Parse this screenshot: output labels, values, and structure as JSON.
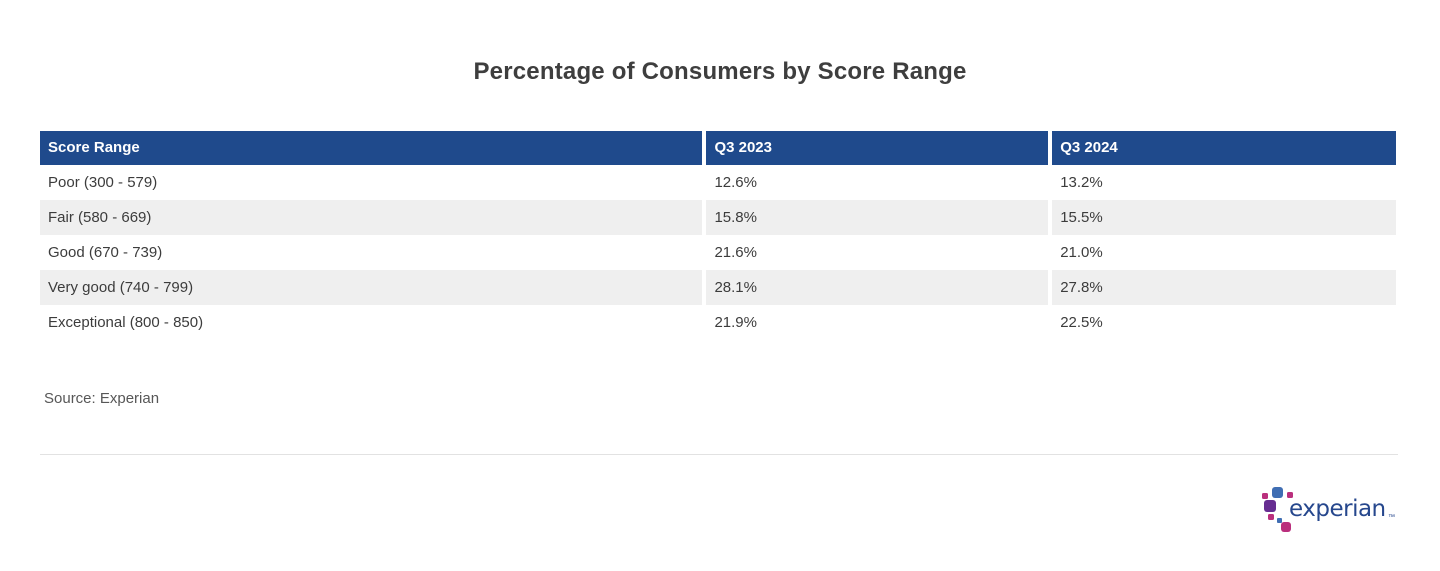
{
  "title": "Percentage of Consumers by Score Range",
  "chart_data": {
    "type": "table",
    "title": "Percentage of Consumers by Score Range",
    "columns": [
      "Score Range",
      "Q3 2023",
      "Q3 2024"
    ],
    "rows": [
      [
        "Poor (300 - 579)",
        "12.6%",
        "13.2%"
      ],
      [
        "Fair (580 - 669)",
        "15.8%",
        "15.5%"
      ],
      [
        "Good (670 - 739)",
        "21.6%",
        "21.0%"
      ],
      [
        "Very good (740 - 799)",
        "28.1%",
        "27.8%"
      ],
      [
        "Exceptional (800 - 850)",
        "21.9%",
        "22.5%"
      ]
    ],
    "categories": [
      "Poor (300 - 579)",
      "Fair (580 - 669)",
      "Good (670 - 739)",
      "Very good (740 - 799)",
      "Exceptional (800 - 850)"
    ],
    "series": [
      {
        "name": "Q3 2023",
        "values": [
          12.6,
          15.8,
          21.6,
          28.1,
          21.9
        ]
      },
      {
        "name": "Q3 2024",
        "values": [
          13.2,
          15.5,
          21.0,
          27.8,
          22.5
        ]
      }
    ]
  },
  "source": "Source: Experian",
  "logo": {
    "text": "experian",
    "trademark": "™"
  },
  "colors": {
    "header_bg": "#1f4a8c",
    "row_alt": "#efefef",
    "wordmark_blue": "#26478d",
    "logo_blue": "#406eb3",
    "logo_purple": "#662d91",
    "logo_magenta": "#ba2f7d"
  }
}
